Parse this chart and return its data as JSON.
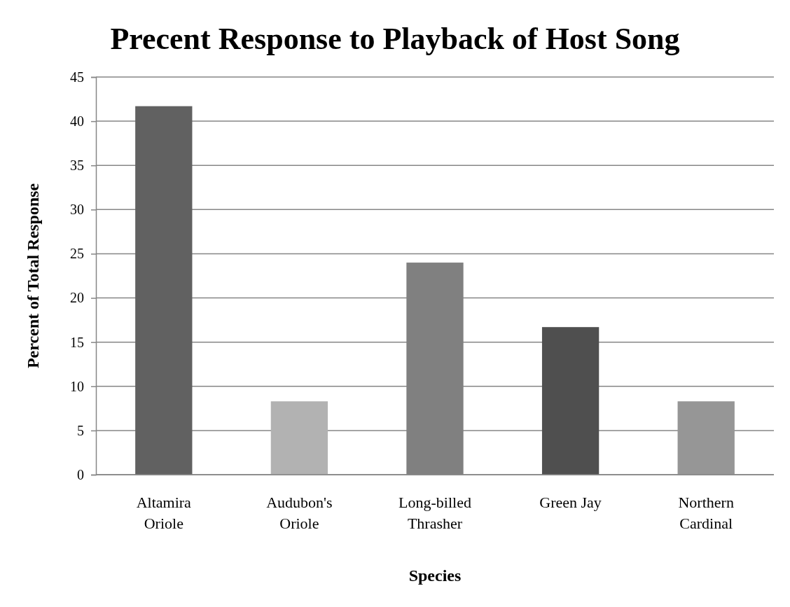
{
  "chart_data": {
    "type": "bar",
    "title": "Precent Response to Playback of Host Song",
    "xlabel": "Species",
    "ylabel": "Percent of Total Response",
    "categories": [
      "Altamira Oriole",
      "Audubon's Oriole",
      "Long-billed Thrasher",
      "Green Jay",
      "Northern Cardinal"
    ],
    "values": [
      41.7,
      8.3,
      24,
      16.7,
      8.3
    ],
    "colors": [
      "#616161",
      "#b2b2b2",
      "#808080",
      "#4f4f4f",
      "#969696"
    ],
    "ylim": [
      0,
      45
    ],
    "yticks": [
      0,
      5,
      10,
      15,
      20,
      25,
      30,
      35,
      40,
      45
    ],
    "grid": "y"
  }
}
